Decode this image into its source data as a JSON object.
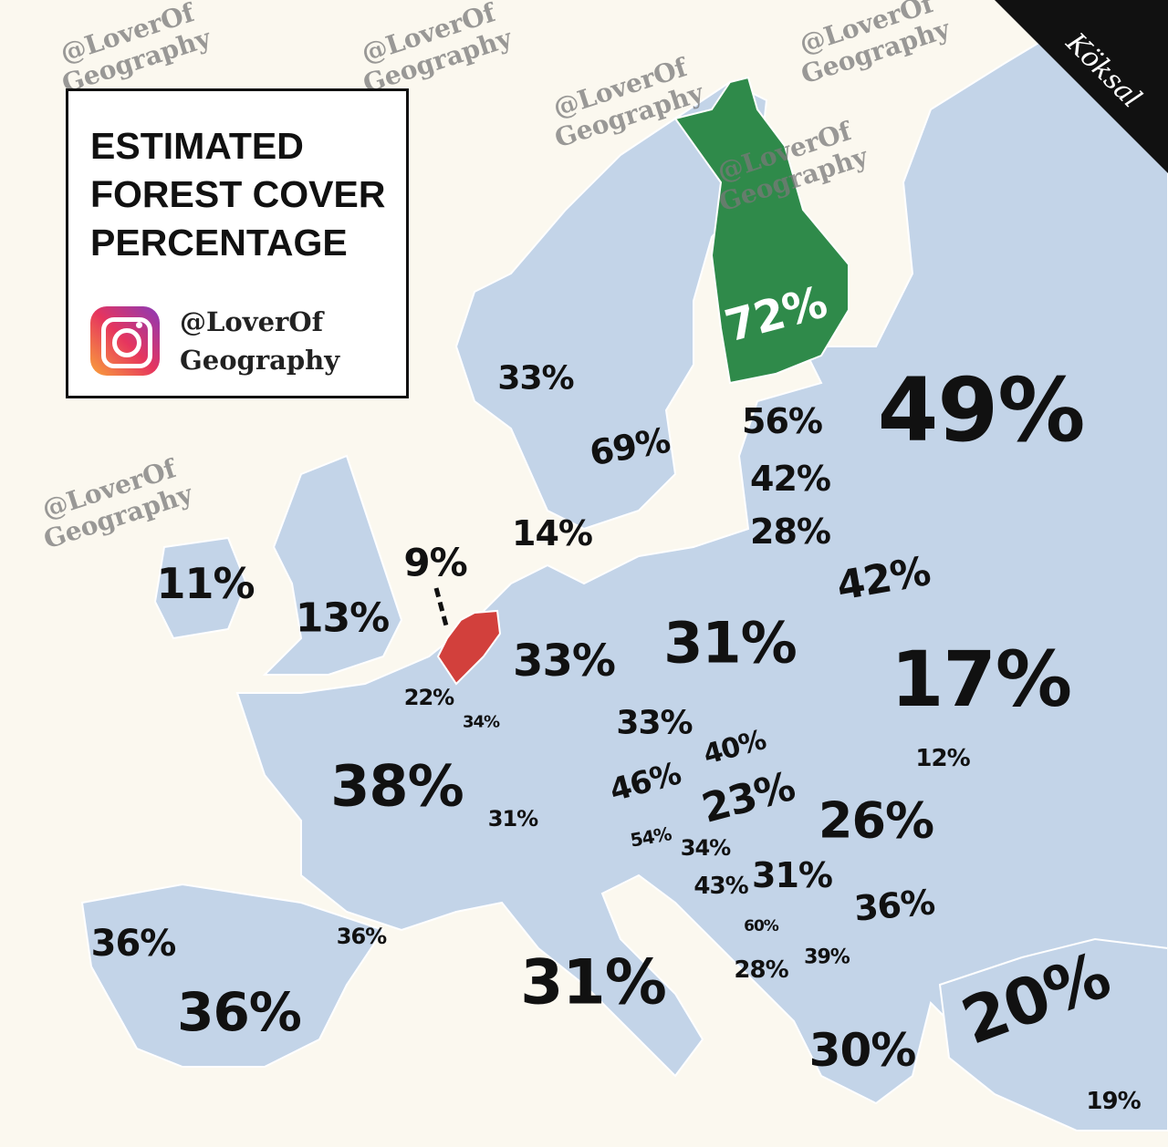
{
  "title": {
    "lines": [
      "ESTIMATED",
      "FOREST COVER",
      "PERCENTAGE"
    ]
  },
  "handle": {
    "line1": "@LoverOf",
    "line2": "Geography",
    "icon": "instagram-icon"
  },
  "signature": "Köksal",
  "watermark": {
    "line1": "@LoverOf",
    "line2": "Geography"
  },
  "colors": {
    "land": "#c3d4e8",
    "sea": "#fbf8ef",
    "finland": "#2f8a4a",
    "netherlands": "#d2403c",
    "border": "#ffffff"
  },
  "highlight": {
    "max": "72%",
    "min": "9%"
  },
  "labels": [
    "72%",
    "49%",
    "56%",
    "42%",
    "28%",
    "42%",
    "17%",
    "33%",
    "69%",
    "14%",
    "9%",
    "11%",
    "13%",
    "33%",
    "31%",
    "22%",
    "34%",
    "38%",
    "33%",
    "40%",
    "12%",
    "46%",
    "23%",
    "26%",
    "31%",
    "54%",
    "34%",
    "43%",
    "31%",
    "36%",
    "60%",
    "39%",
    "28%",
    "36%",
    "36%",
    "36%",
    "31%",
    "30%",
    "20%",
    "19%"
  ]
}
